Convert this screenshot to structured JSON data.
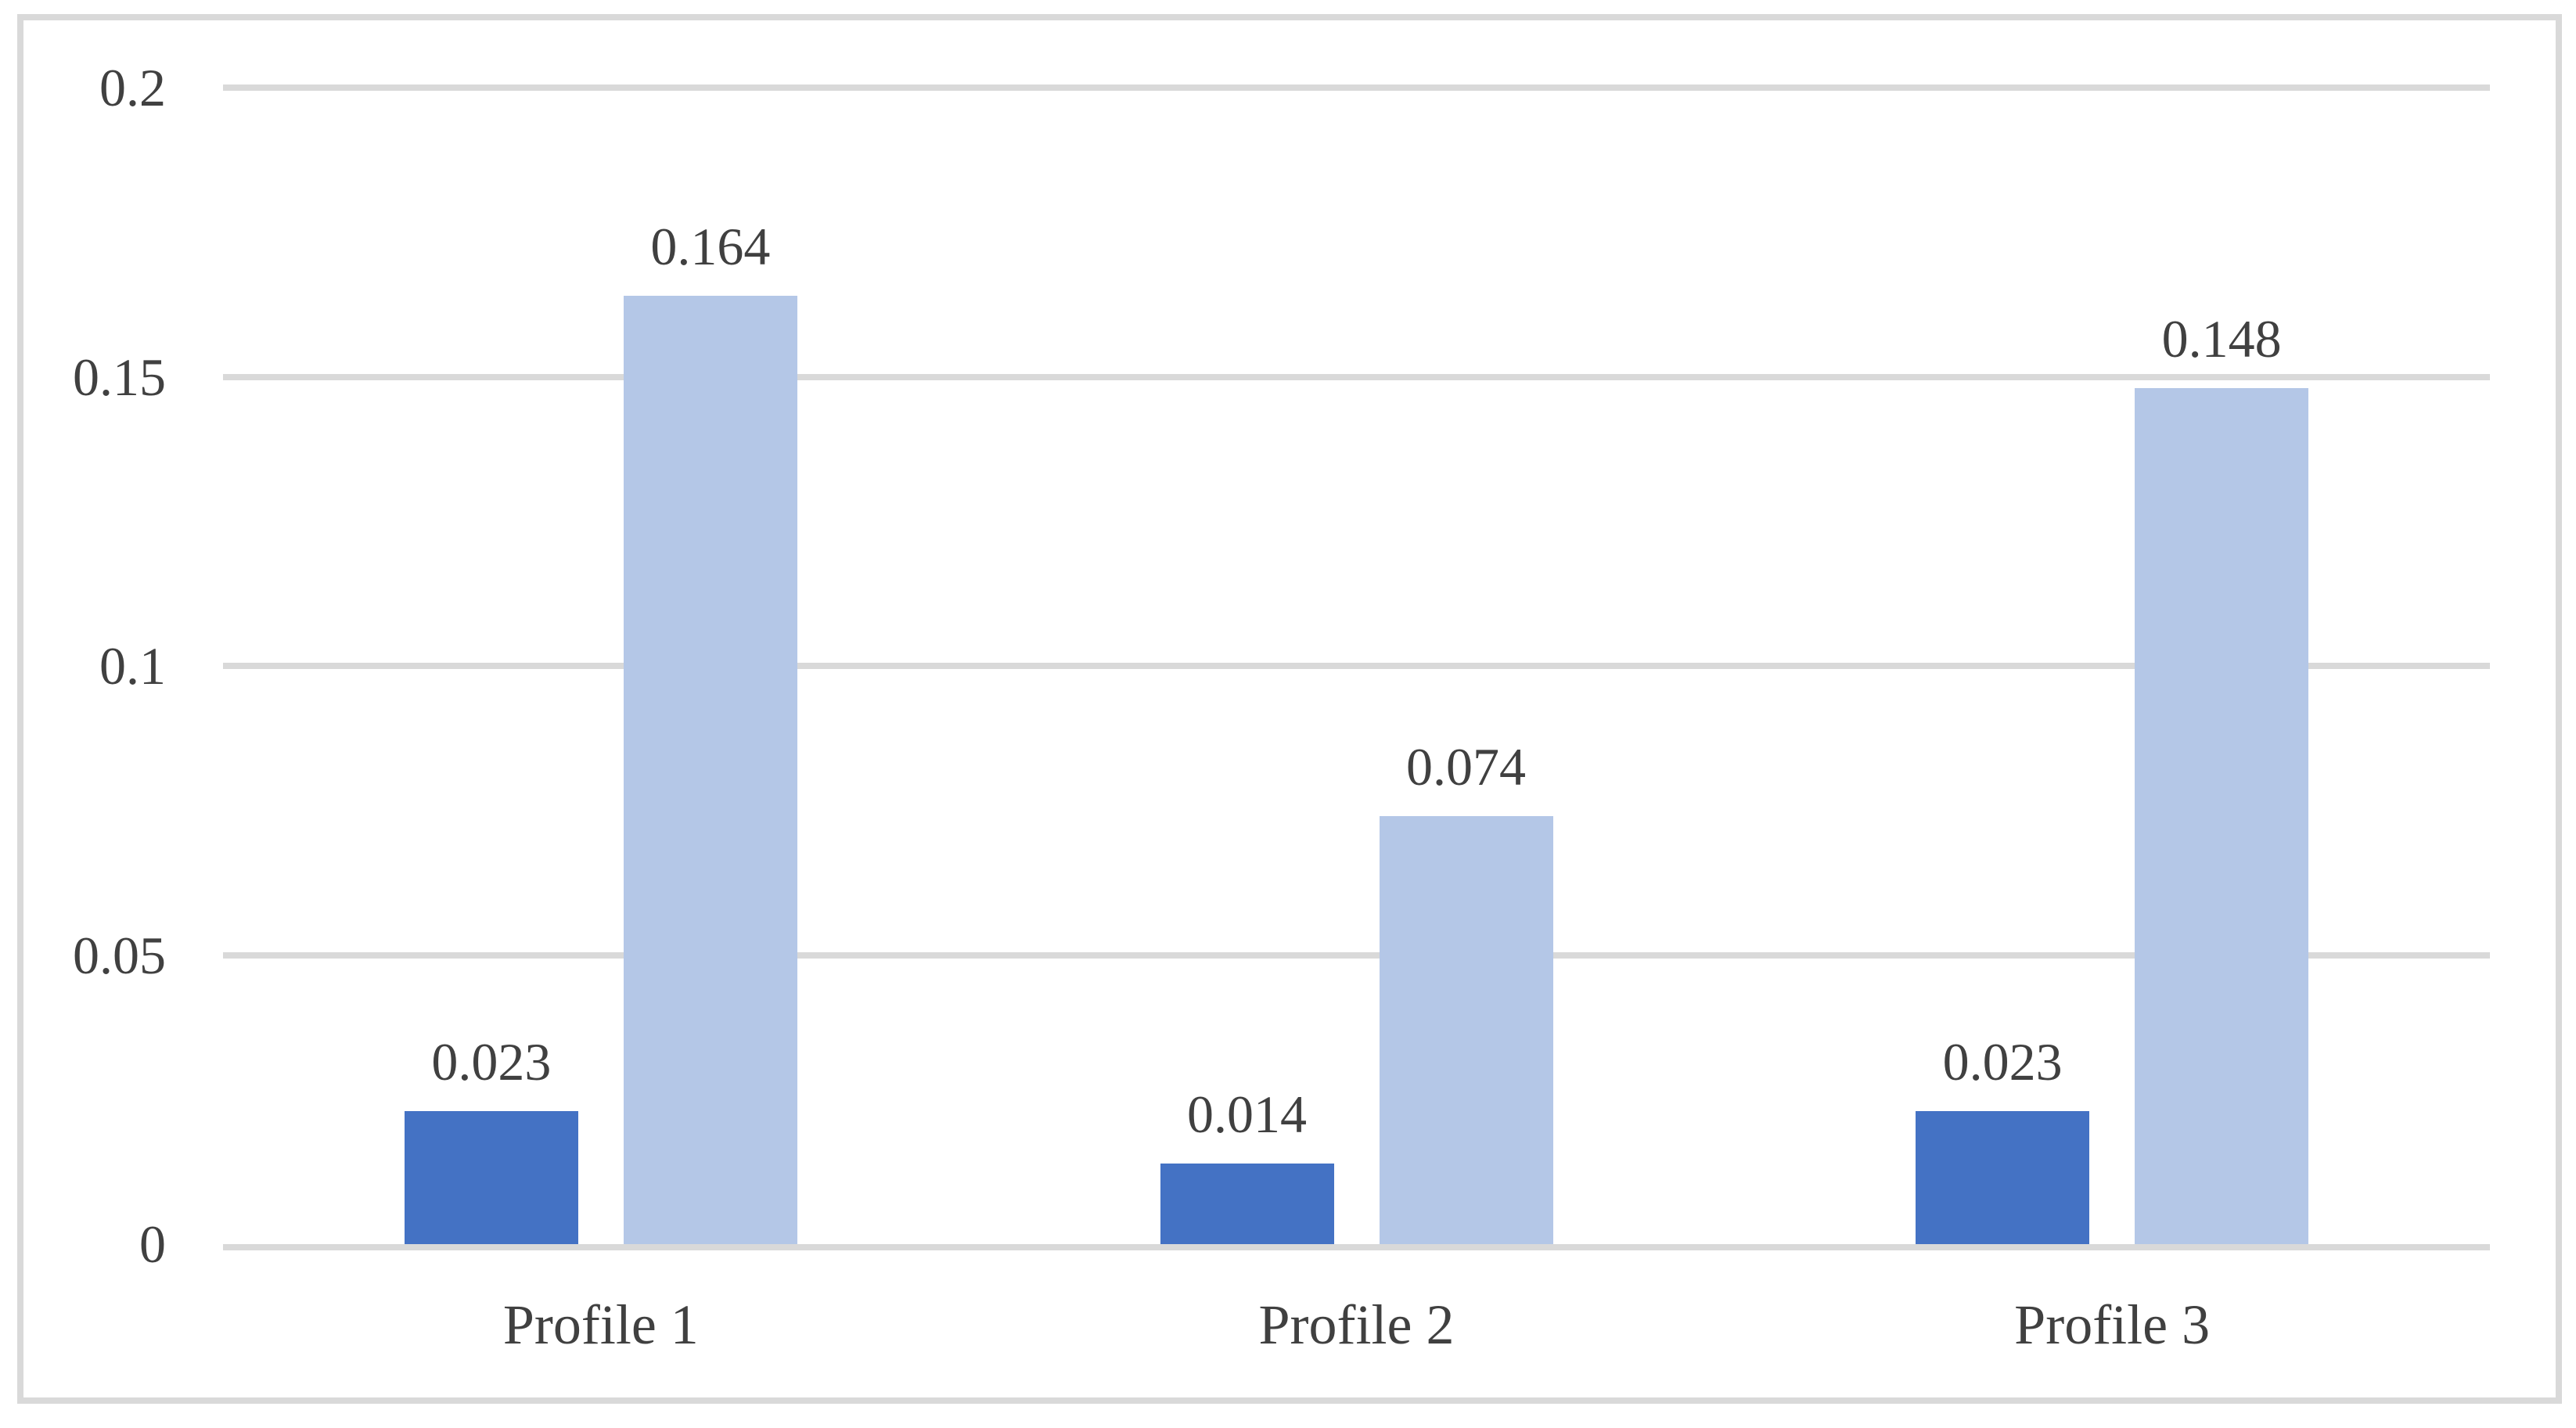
{
  "page": {
    "background": "#FFFFFF"
  },
  "colors": {
    "text": "#404040",
    "grid": "#D9D9D9",
    "frame_border": "#D9D9D9",
    "series_dark_blue": "#4472C4",
    "series_light_blue": "#B4C7E7"
  },
  "chart_data": {
    "type": "bar",
    "title": "",
    "xlabel": "",
    "ylabel": "",
    "categories": [
      "Profile 1",
      "Profile 2",
      "Profile 3"
    ],
    "series": [
      {
        "name": "dark-blue-series",
        "color": "#4472C4",
        "values": [
          0.023,
          0.014,
          0.023
        ],
        "data_labels": [
          "0.023",
          "0.014",
          "0.023"
        ]
      },
      {
        "name": "light-blue-series",
        "color": "#B4C7E7",
        "values": [
          0.164,
          0.074,
          0.148
        ],
        "data_labels": [
          "0.164",
          "0.074",
          "0.148"
        ]
      }
    ],
    "ylim": [
      0,
      0.2
    ],
    "yticks": [
      0,
      0.05,
      0.1,
      0.15,
      0.2
    ],
    "ytick_labels": [
      "0",
      "0.05",
      "0.1",
      "0.15",
      "0.2"
    ],
    "grid": true,
    "legend_position": "none",
    "data_labels_visible": true
  }
}
